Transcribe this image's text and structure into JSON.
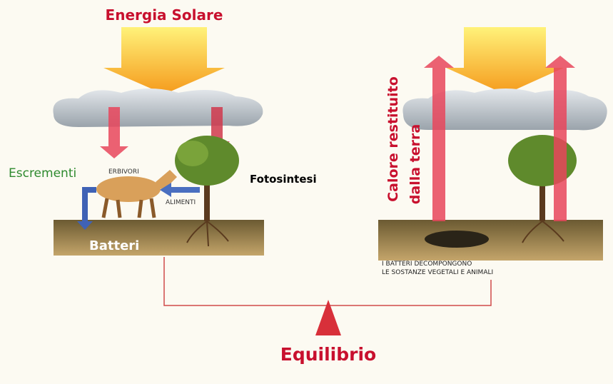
{
  "labels": {
    "solar": "Energia Solare",
    "excrement": "Escrementi",
    "herbivores": "ERBIVORI",
    "food": "ALIMENTI",
    "photosynthesis": "Fotosintesi",
    "bacteria": "Batteri",
    "heat_line1": "Calore restituito",
    "heat_line2": "dalla terra",
    "decompose_line1": "I BATTERI DECOMPONGONO",
    "decompose_line2": "LE SOSTANZE VEGETALI E ANIMALI",
    "balance": "Equilibrio"
  }
}
